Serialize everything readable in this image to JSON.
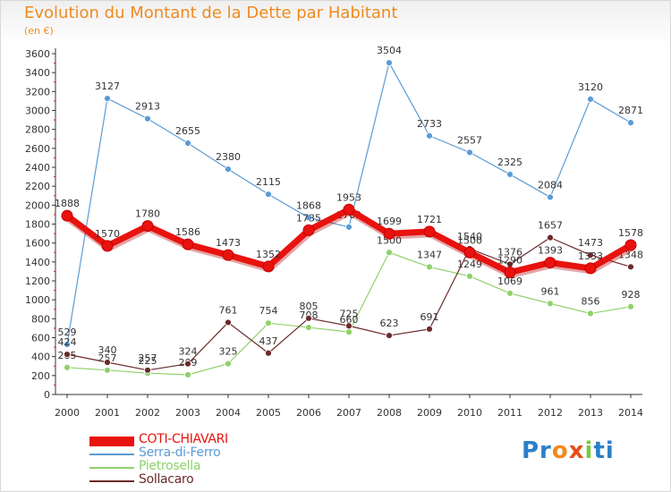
{
  "header": {
    "title": "Evolution du Montant de la Dette par Habitant",
    "unit": "(en €)"
  },
  "logo": {
    "parts": [
      "Pr",
      "o",
      "x",
      "i",
      "ti"
    ],
    "colors": [
      "#2b7fc8",
      "#f08a1e",
      "#e84c1c",
      "#7ac943",
      "#2b7fc8"
    ]
  },
  "chart_data": {
    "type": "line",
    "x": [
      "2000",
      "2001",
      "2002",
      "2003",
      "2004",
      "2005",
      "2006",
      "2007",
      "2008",
      "2009",
      "2010",
      "2011",
      "2012",
      "2013",
      "2014"
    ],
    "ylim": [
      0,
      3600
    ],
    "yticks": [
      0,
      200,
      400,
      600,
      800,
      1000,
      1200,
      1400,
      1600,
      1800,
      2000,
      2200,
      2400,
      2600,
      2800,
      3000,
      3200,
      3400,
      3600
    ],
    "grid": false,
    "legend_position": "bottom-left",
    "series": [
      {
        "name": "Serra-di-Ferro",
        "color": "#5b9bd5",
        "values": [
          529,
          3127,
          2913,
          2655,
          2380,
          2115,
          1868,
          1769,
          3504,
          2733,
          2557,
          2325,
          2084,
          3120,
          2871
        ]
      },
      {
        "name": "Pietrosella",
        "color": "#8fd16a",
        "values": [
          285,
          257,
          225,
          209,
          325,
          754,
          708,
          660,
          1500,
          1347,
          1249,
          1069,
          961,
          856,
          928
        ]
      },
      {
        "name": "Sollacaro",
        "color": "#6b2a2a",
        "values": [
          424,
          340,
          257,
          324,
          761,
          437,
          805,
          725,
          623,
          691,
          1540,
          1376,
          1657,
          1473,
          1348
        ]
      },
      {
        "name": "COTI-CHIAVARI",
        "color": "#e8120e",
        "values": [
          1888,
          1570,
          1780,
          1586,
          1473,
          1352,
          1735,
          1953,
          1699,
          1721,
          1500,
          1290,
          1393,
          1333,
          1578
        ]
      }
    ],
    "legend_order": [
      "COTI-CHIAVARI",
      "Serra-di-Ferro",
      "Pietrosella",
      "Sollacaro"
    ]
  }
}
